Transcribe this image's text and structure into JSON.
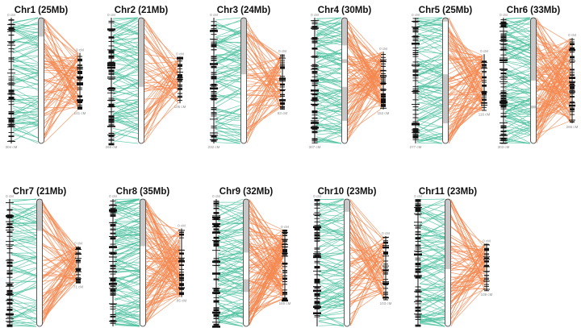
{
  "figure": {
    "colors": {
      "left_links": "#4fc2a0",
      "right_links": "#f4874f",
      "marker": "#111111",
      "chrom_fill": "#ffffff",
      "chrom_shade": "#c8c8c8",
      "chrom_outline": "#333333",
      "label": "#888888"
    },
    "panels": [
      {
        "name": "chr1",
        "title": "Chr1 (25Mb)",
        "left_top": "0 cM",
        "left_bottom": "304 cM",
        "right_top": "0 cM",
        "right_bottom": "141 cM",
        "shade": [
          [
            0,
            0.15
          ]
        ],
        "right_span": [
          0.28,
          0.73
        ],
        "left_markers": 70,
        "right_markers": 40,
        "left_links": 90,
        "right_links": 80,
        "seed": 11
      },
      {
        "name": "chr2",
        "title": "Chr2 (21Mb)",
        "left_top": "0 cM",
        "left_bottom": "266 cM",
        "right_top": "0 cM",
        "right_bottom": "106 cM",
        "shade": [
          [
            0,
            0.55
          ]
        ],
        "right_span": [
          0.31,
          0.68
        ],
        "left_markers": 80,
        "right_markers": 30,
        "left_links": 100,
        "right_links": 60,
        "seed": 22
      },
      {
        "name": "chr3",
        "title": "Chr3 (24Mb)",
        "left_top": "0 cM",
        "left_bottom": "232 cM",
        "right_top": "0 cM",
        "right_bottom": "83 cM",
        "shade": [
          [
            0,
            0.45
          ]
        ],
        "right_span": [
          0.29,
          0.73
        ],
        "left_markers": 75,
        "right_markers": 35,
        "left_links": 95,
        "right_links": 70,
        "seed": 33
      },
      {
        "name": "chr4",
        "title": "Chr4 (30Mb)",
        "left_top": "0 cM",
        "left_bottom": "307 cM",
        "right_top": "0 cM",
        "right_bottom": "152 cM",
        "shade": [
          [
            0,
            0.22
          ],
          [
            0.33,
            0.36
          ],
          [
            0.55,
            0.82
          ]
        ],
        "right_span": [
          0.27,
          0.73
        ],
        "left_markers": 85,
        "right_markers": 45,
        "left_links": 120,
        "right_links": 110,
        "seed": 44
      },
      {
        "name": "chr5",
        "title": "Chr5 (25Mb)",
        "left_top": "0 cM",
        "left_bottom": "277 cM",
        "right_top": "0 cM",
        "right_bottom": "116 cM",
        "shade": [
          [
            0,
            0.03
          ],
          [
            0.45,
            0.84
          ]
        ],
        "right_span": [
          0.29,
          0.74
        ],
        "left_markers": 70,
        "right_markers": 35,
        "left_links": 110,
        "right_links": 100,
        "seed": 55
      },
      {
        "name": "chr6",
        "title": "Chr6 (33Mb)",
        "left_top": "0 cM",
        "left_bottom": "303 cM",
        "right_top": "0 cM",
        "right_bottom": "266 cM",
        "shade": [
          [
            0,
            0.5
          ],
          [
            0.7,
            0.72
          ]
        ],
        "right_span": [
          0.16,
          0.84
        ],
        "left_markers": 90,
        "right_markers": 55,
        "left_links": 130,
        "right_links": 130,
        "seed": 66
      },
      {
        "name": "chr7",
        "title": "Chr7 (21Mb)",
        "left_top": "0 cM",
        "left_bottom": "266 cM",
        "right_top": "0 cM",
        "right_bottom": "71 cM",
        "shade": [
          [
            0,
            0.25
          ]
        ],
        "right_span": [
          0.37,
          0.66
        ],
        "left_markers": 60,
        "right_markers": 25,
        "left_links": 85,
        "right_links": 75,
        "seed": 77
      },
      {
        "name": "chr8",
        "title": "Chr8 (35Mb)",
        "left_top": "0 cM",
        "left_bottom": "331 cM",
        "right_top": "0 cM",
        "right_bottom": "85 cM",
        "shade": [
          [
            0,
            0.37
          ]
        ],
        "right_span": [
          0.23,
          0.77
        ],
        "left_markers": 95,
        "right_markers": 45,
        "left_links": 140,
        "right_links": 110,
        "seed": 88
      },
      {
        "name": "chr9",
        "title": "Chr9 (32Mb)",
        "left_top": "0 cM",
        "left_bottom": "345 cM",
        "right_top": "0 cM",
        "right_bottom": "165 cM",
        "shade": [
          [
            0,
            0.42
          ],
          [
            0.63,
            0.73
          ]
        ],
        "right_span": [
          0.24,
          0.79
        ],
        "left_markers": 85,
        "right_markers": 50,
        "left_links": 120,
        "right_links": 120,
        "seed": 99
      },
      {
        "name": "chr10",
        "title": "Chr10 (23Mb)",
        "left_top": "0 cM",
        "left_bottom": "202 cM",
        "right_top": "0 cM",
        "right_bottom": "103 cM",
        "shade": [
          [
            0,
            0.1
          ]
        ],
        "right_span": [
          0.29,
          0.79
        ],
        "left_markers": 75,
        "right_markers": 35,
        "left_links": 100,
        "right_links": 75,
        "seed": 101
      },
      {
        "name": "chr11",
        "title": "Chr11 (23Mb)",
        "left_top": "0 cM",
        "left_bottom": "294 cM",
        "right_top": "0 cM",
        "right_bottom": "109 cM",
        "shade": [
          [
            0,
            0.55
          ]
        ],
        "right_span": [
          0.35,
          0.72
        ],
        "left_markers": 75,
        "right_markers": 30,
        "left_links": 110,
        "right_links": 80,
        "seed": 111
      }
    ]
  }
}
